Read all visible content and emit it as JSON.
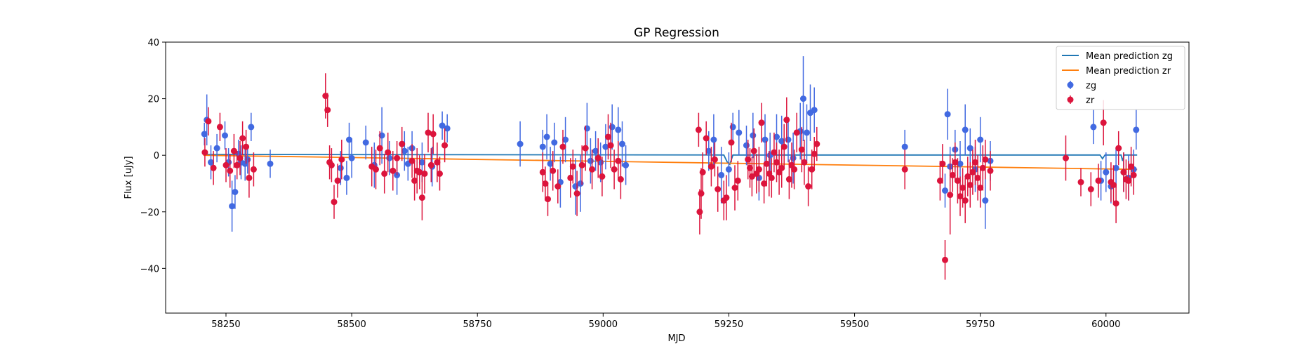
{
  "chart_data": {
    "type": "scatter",
    "title": "GP Regression",
    "xlabel": "MJD",
    "ylabel": "Flux [uJy]",
    "xlim": [
      58130,
      60165
    ],
    "ylim": [
      -55.8,
      40
    ],
    "xticks": [
      58250,
      58500,
      58750,
      59000,
      59250,
      59500,
      59750,
      60000
    ],
    "yticks": [
      -40,
      -20,
      0,
      20,
      40
    ],
    "grid": false,
    "legend_position": "top-right",
    "legend": [
      {
        "label": "Mean prediction zg",
        "kind": "line",
        "color": "#1f77b4"
      },
      {
        "label": "Mean prediction zr",
        "kind": "line",
        "color": "#ff7f0e"
      },
      {
        "label": "zg",
        "kind": "errorbar",
        "color": "#4169e1"
      },
      {
        "label": "zr",
        "kind": "errorbar",
        "color": "#dc143c"
      }
    ],
    "lines": [
      {
        "name": "Mean prediction zg",
        "color": "#1f77b4",
        "x": [
          58205,
          58700,
          59240,
          59247,
          59252,
          59258,
          59700,
          59988,
          59993,
          59998,
          60030,
          60033,
          60036,
          60062
        ],
        "y": [
          0.3,
          0.2,
          0.1,
          -2.5,
          -3.2,
          0.1,
          0.1,
          0.1,
          -1.2,
          0.1,
          0.1,
          -2.0,
          0.1,
          0.1
        ]
      },
      {
        "name": "Mean prediction zr",
        "color": "#ff7f0e",
        "x": [
          58205,
          60062
        ],
        "y": [
          0.0,
          -5.0
        ]
      }
    ],
    "series": [
      {
        "name": "zg",
        "color": "#4169e1",
        "x": [
          58207,
          58212,
          58220,
          58232,
          58248,
          58255,
          58262,
          58268,
          58275,
          58280,
          58288,
          58293,
          58300,
          58338,
          58478,
          58490,
          58495,
          58500,
          58528,
          58545,
          58560,
          58575,
          58590,
          58605,
          58612,
          58620,
          58640,
          58660,
          58680,
          58690,
          58835,
          58880,
          58888,
          58895,
          58903,
          58915,
          58925,
          58945,
          58955,
          58968,
          58975,
          58985,
          58995,
          59005,
          59018,
          59030,
          59038,
          59045,
          59210,
          59220,
          59235,
          59250,
          59258,
          59270,
          59285,
          59298,
          59310,
          59322,
          59332,
          59345,
          59355,
          59368,
          59378,
          59392,
          59398,
          59405,
          59412,
          59420,
          59600,
          59680,
          59685,
          59690,
          59700,
          59710,
          59720,
          59730,
          59740,
          59750,
          59760,
          59770,
          59975,
          59990,
          60000,
          60010,
          60020,
          60035,
          60045,
          60055,
          60060
        ],
        "y": [
          7.5,
          12.5,
          -2.5,
          2.5,
          7.0,
          -2.5,
          -18.0,
          -13.0,
          0.5,
          -2.5,
          -3.0,
          -1.5,
          10.0,
          -3.0,
          -4.5,
          -8.0,
          5.5,
          -1.0,
          4.5,
          -3.5,
          7.0,
          -1.0,
          -7.0,
          1.5,
          -3.0,
          2.5,
          -2.5,
          -4.0,
          10.5,
          9.5,
          4.0,
          3.0,
          6.5,
          -3.0,
          4.5,
          -9.5,
          5.5,
          -11.0,
          -10.0,
          9.5,
          -2.0,
          1.5,
          -2.5,
          3.0,
          10.0,
          9.0,
          4.0,
          -3.5,
          1.5,
          5.5,
          -7.0,
          -5.0,
          10.0,
          8.0,
          3.5,
          7.0,
          -8.0,
          5.5,
          0.0,
          6.5,
          5.0,
          5.5,
          -1.0,
          8.5,
          20.0,
          8.0,
          15.0,
          16.0,
          3.0,
          -12.5,
          14.5,
          -4.0,
          2.0,
          -3.0,
          9.0,
          2.5,
          -5.0,
          5.5,
          -16.0,
          -2.0,
          10.0,
          -9.0,
          -6.0,
          -11.0,
          -4.5,
          -6.0,
          -8.0,
          -5.0,
          9.0
        ],
        "err": [
          4,
          9,
          6,
          5,
          5,
          5,
          9,
          6,
          5,
          6,
          6,
          5,
          5,
          5,
          6,
          6,
          6,
          7,
          6,
          8,
          10,
          6,
          7,
          7,
          6,
          6,
          7,
          7,
          5,
          5,
          8,
          6,
          8,
          6,
          7,
          9,
          8,
          10,
          10,
          9,
          8,
          7,
          7,
          8,
          8,
          8,
          8,
          7,
          7,
          9,
          10,
          6,
          5,
          8,
          7,
          8,
          8,
          9,
          8,
          8,
          9,
          8,
          9,
          10,
          15,
          10,
          10,
          8,
          6,
          6,
          9,
          7,
          7,
          8,
          9,
          7,
          8,
          8,
          10,
          7,
          6,
          7,
          7,
          6,
          7,
          7,
          8,
          7,
          7
        ]
      },
      {
        "name": "zr",
        "color": "#dc143c",
        "x": [
          58208,
          58215,
          58225,
          58238,
          58250,
          58258,
          58266,
          58272,
          58278,
          58283,
          58290,
          58296,
          58305,
          58448,
          58452,
          58456,
          58460,
          58465,
          58472,
          58480,
          58540,
          58548,
          58556,
          58565,
          58572,
          58582,
          58590,
          58600,
          58620,
          58625,
          58630,
          58635,
          58640,
          58645,
          58652,
          58658,
          58662,
          58670,
          58675,
          58685,
          58880,
          58885,
          58890,
          58900,
          58910,
          58920,
          58935,
          58940,
          58948,
          58958,
          58965,
          58978,
          58990,
          58998,
          59010,
          59015,
          59022,
          59030,
          59035,
          59190,
          59192,
          59195,
          59198,
          59205,
          59215,
          59222,
          59228,
          59240,
          59245,
          59255,
          59262,
          59268,
          59288,
          59292,
          59296,
          59300,
          59305,
          59310,
          59315,
          59320,
          59325,
          59330,
          59335,
          59340,
          59345,
          59350,
          59355,
          59360,
          59365,
          59370,
          59375,
          59380,
          59385,
          59395,
          59400,
          59408,
          59415,
          59420,
          59425,
          59600,
          59670,
          59675,
          59680,
          59690,
          59695,
          59700,
          59705,
          59710,
          59715,
          59720,
          59725,
          59730,
          59735,
          59740,
          59745,
          59750,
          59755,
          59760,
          59770,
          59920,
          59950,
          59970,
          59985,
          59995,
          60010,
          60015,
          60020,
          60025,
          60035,
          60040,
          60045,
          60050,
          60055
        ],
        "y": [
          1.0,
          12.0,
          -4.5,
          10.0,
          -3.5,
          -5.5,
          1.5,
          -3.5,
          -1.0,
          6.0,
          3.0,
          -8.0,
          -5.0,
          21.0,
          16.0,
          -2.5,
          -3.5,
          -16.5,
          -9.0,
          -1.5,
          -4.0,
          -5.0,
          2.5,
          -6.5,
          1.0,
          -5.5,
          -1.0,
          4.0,
          -2.0,
          -9.0,
          -5.5,
          -6.0,
          -15.0,
          -6.5,
          8.0,
          -3.5,
          7.5,
          -2.5,
          -6.5,
          3.5,
          -6.0,
          -10.0,
          -15.5,
          -5.5,
          -11.0,
          3.0,
          -8.0,
          -4.0,
          -13.5,
          -3.5,
          2.5,
          -5.0,
          -1.0,
          -7.5,
          6.5,
          3.5,
          -5.0,
          -2.0,
          -8.5,
          9.0,
          -20.0,
          -13.5,
          -6.0,
          6.0,
          -4.0,
          -1.5,
          -12.0,
          -16.0,
          -15.0,
          4.5,
          -11.5,
          -9.0,
          -1.5,
          -4.5,
          -7.5,
          1.5,
          -6.5,
          -5.0,
          11.5,
          -10.0,
          -3.0,
          -6.5,
          -8.0,
          1.0,
          -2.5,
          -6.0,
          -4.5,
          3.0,
          12.5,
          -8.5,
          -3.5,
          -5.0,
          8.0,
          2.0,
          -2.5,
          -11.0,
          -5.0,
          0.5,
          4.0,
          -5.0,
          -9.0,
          -3.0,
          -37.0,
          -14.0,
          -7.0,
          -2.5,
          -9.0,
          -14.5,
          -11.5,
          -16.0,
          -7.5,
          -10.5,
          -6.0,
          -2.5,
          -8.0,
          -11.5,
          -4.5,
          -1.5,
          -5.5,
          -1.0,
          -9.5,
          -12.0,
          -9.0,
          11.5,
          -9.5,
          -10.5,
          -17.0,
          2.5,
          -6.0,
          -8.5,
          -9.0,
          -4.0,
          -7.0
        ],
        "err": [
          5,
          5,
          6,
          5,
          6,
          6,
          6,
          5,
          6,
          6,
          6,
          7,
          6,
          8,
          6,
          6,
          6,
          6,
          6,
          7,
          7,
          7,
          6,
          7,
          7,
          7,
          6,
          6,
          6,
          7,
          8,
          6,
          8,
          7,
          7,
          6,
          7,
          7,
          6,
          6,
          7,
          6,
          6,
          7,
          6,
          6,
          7,
          6,
          8,
          7,
          8,
          7,
          7,
          7,
          8,
          8,
          7,
          7,
          7,
          6,
          8,
          9,
          7,
          6,
          7,
          6,
          8,
          7,
          8,
          7,
          8,
          7,
          7,
          7,
          7,
          8,
          7,
          8,
          7,
          7,
          8,
          8,
          7,
          7,
          7,
          8,
          7,
          8,
          8,
          7,
          8,
          7,
          7,
          8,
          8,
          7,
          7,
          6,
          6,
          7,
          7,
          7,
          7,
          14,
          6,
          7,
          8,
          7,
          7,
          8,
          7,
          8,
          8,
          8,
          8,
          7,
          8,
          7,
          7,
          8,
          5,
          6,
          6,
          8,
          7,
          7,
          7,
          6,
          7,
          7,
          7,
          7,
          7
        ]
      }
    ]
  }
}
